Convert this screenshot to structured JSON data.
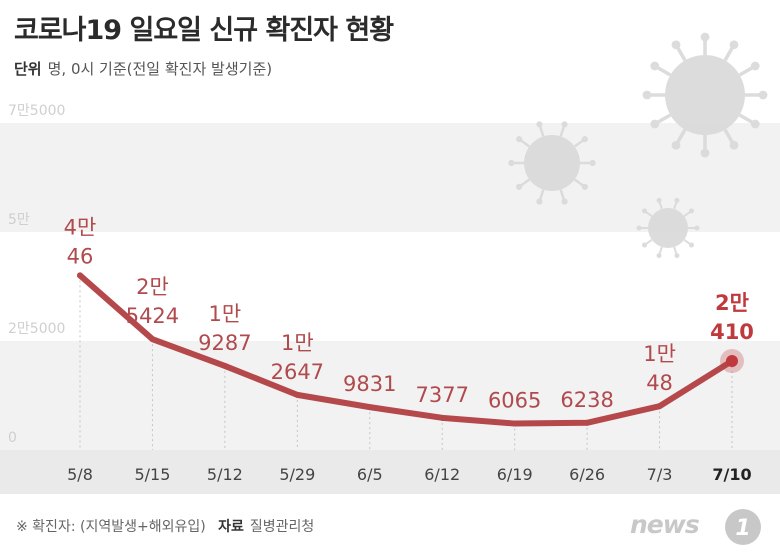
{
  "title": "코로나19 일요일 신규 확진자 현황",
  "subtitle": {
    "unit_label": "단위",
    "unit_text": "명, 0시 기준(전일 확진자 발생기준)"
  },
  "footer": {
    "note": "※ 확진자: (지역발생+해외유입)",
    "source_label": "자료",
    "source": "질병관리청"
  },
  "logo": {
    "text": "news",
    "mark": "1"
  },
  "colors": {
    "line": "#b5484b",
    "label": "#b04a4d",
    "label_last": "#c0393d",
    "band": "#f2f2f2",
    "axis_strip": "#eaeaea",
    "tick_text": "#444444",
    "gridlabel": "#cfcfcf",
    "virus": "#d9d9d9"
  },
  "chart_data": {
    "type": "line",
    "title": "코로나19 일요일 신규 확진자 현황",
    "ylabel": "명",
    "xlabel": "",
    "ylim": [
      0,
      75000
    ],
    "y_ticks": [
      0,
      25000,
      50000,
      75000
    ],
    "y_tick_labels": [
      "0",
      "2만5000",
      "5만",
      "7만5000"
    ],
    "categories": [
      "5/8",
      "5/15",
      "5/12",
      "5/29",
      "6/5",
      "6/12",
      "6/19",
      "6/26",
      "7/3",
      "7/10"
    ],
    "values": [
      40046,
      25424,
      19287,
      12647,
      9831,
      7377,
      6065,
      6238,
      10048,
      20410
    ],
    "data_labels": [
      [
        "4만",
        "46"
      ],
      [
        "2만",
        "5424"
      ],
      [
        "1만",
        "9287"
      ],
      [
        "1만",
        "2647"
      ],
      [
        "9831"
      ],
      [
        "7377"
      ],
      [
        "6065"
      ],
      [
        "6238"
      ],
      [
        "1만",
        "48"
      ],
      [
        "2만",
        "410"
      ]
    ],
    "highlight_index": 9
  }
}
